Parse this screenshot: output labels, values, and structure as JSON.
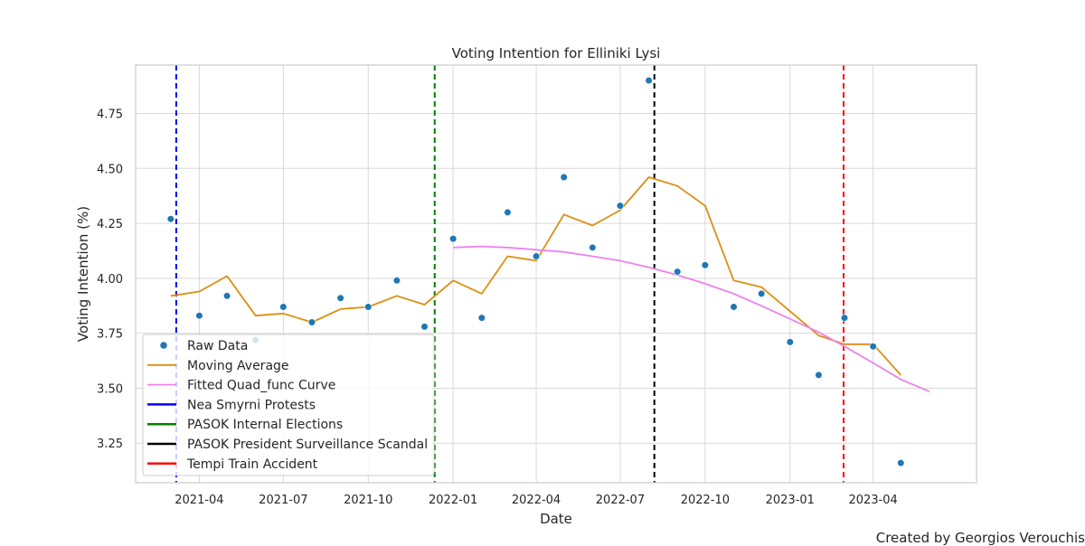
{
  "credit": "Created by Georgios Verouchis",
  "chart_data": {
    "type": "line",
    "title": "Voting Intention for Elliniki Lysi",
    "xlabel": "Date",
    "ylabel": "Voting Intention (%)",
    "x_ticks": [
      "2021-04",
      "2021-07",
      "2021-10",
      "2022-01",
      "2022-04",
      "2022-07",
      "2022-10",
      "2023-01",
      "2023-04"
    ],
    "y_ticks": [
      "3.25",
      "3.50",
      "3.75",
      "4.00",
      "4.25",
      "4.50",
      "4.75"
    ],
    "xlim": [
      "2021-01-22",
      "2023-07-22"
    ],
    "ylim": [
      3.07,
      4.97
    ],
    "grid": true,
    "legend_position": "lower-left",
    "series": [
      {
        "name": "Raw Data",
        "kind": "scatter",
        "color": "#1f77b4",
        "points": [
          [
            "2021-03-01",
            4.27
          ],
          [
            "2021-04-01",
            3.83
          ],
          [
            "2021-05-01",
            3.92
          ],
          [
            "2021-06-01",
            3.72
          ],
          [
            "2021-07-01",
            3.87
          ],
          [
            "2021-08-01",
            3.8
          ],
          [
            "2021-09-01",
            3.91
          ],
          [
            "2021-10-01",
            3.87
          ],
          [
            "2021-11-01",
            3.99
          ],
          [
            "2021-12-01",
            3.78
          ],
          [
            "2022-01-01",
            4.18
          ],
          [
            "2022-02-01",
            3.82
          ],
          [
            "2022-03-01",
            4.3
          ],
          [
            "2022-04-01",
            4.1
          ],
          [
            "2022-05-01",
            4.46
          ],
          [
            "2022-06-01",
            4.14
          ],
          [
            "2022-07-01",
            4.33
          ],
          [
            "2022-08-01",
            4.9
          ],
          [
            "2022-09-01",
            4.03
          ],
          [
            "2022-10-01",
            4.06
          ],
          [
            "2022-11-01",
            3.87
          ],
          [
            "2022-12-01",
            3.93
          ],
          [
            "2023-01-01",
            3.71
          ],
          [
            "2023-02-01",
            3.56
          ],
          [
            "2023-03-01",
            3.82
          ],
          [
            "2023-04-01",
            3.69
          ],
          [
            "2023-05-01",
            3.16
          ]
        ]
      },
      {
        "name": "Moving Average",
        "kind": "line",
        "color": "#dd8e12",
        "points": [
          [
            "2021-03-01",
            3.92
          ],
          [
            "2021-04-01",
            3.94
          ],
          [
            "2021-05-01",
            4.01
          ],
          [
            "2021-06-01",
            3.83
          ],
          [
            "2021-07-01",
            3.84
          ],
          [
            "2021-08-01",
            3.8
          ],
          [
            "2021-09-01",
            3.86
          ],
          [
            "2021-10-01",
            3.87
          ],
          [
            "2021-11-01",
            3.92
          ],
          [
            "2021-12-01",
            3.88
          ],
          [
            "2022-01-01",
            3.99
          ],
          [
            "2022-02-01",
            3.93
          ],
          [
            "2022-03-01",
            4.1
          ],
          [
            "2022-04-01",
            4.08
          ],
          [
            "2022-05-01",
            4.29
          ],
          [
            "2022-06-01",
            4.24
          ],
          [
            "2022-07-01",
            4.31
          ],
          [
            "2022-08-01",
            4.46
          ],
          [
            "2022-09-01",
            4.42
          ],
          [
            "2022-10-01",
            4.33
          ],
          [
            "2022-11-01",
            3.99
          ],
          [
            "2022-12-01",
            3.96
          ],
          [
            "2023-01-01",
            3.85
          ],
          [
            "2023-02-01",
            3.74
          ],
          [
            "2023-03-01",
            3.7
          ],
          [
            "2023-04-01",
            3.7
          ],
          [
            "2023-05-01",
            3.56
          ]
        ]
      },
      {
        "name": "Fitted Quad_func Curve",
        "kind": "line",
        "color": "#ee82ee",
        "points": [
          [
            "2022-01-01",
            4.14
          ],
          [
            "2022-02-01",
            4.145
          ],
          [
            "2022-03-01",
            4.14
          ],
          [
            "2022-04-01",
            4.13
          ],
          [
            "2022-05-01",
            4.12
          ],
          [
            "2022-06-01",
            4.1
          ],
          [
            "2022-07-01",
            4.08
          ],
          [
            "2022-08-01",
            4.05
          ],
          [
            "2022-09-01",
            4.015
          ],
          [
            "2022-10-01",
            3.975
          ],
          [
            "2022-11-01",
            3.93
          ],
          [
            "2022-12-01",
            3.875
          ],
          [
            "2023-01-01",
            3.815
          ],
          [
            "2023-02-01",
            3.755
          ],
          [
            "2023-03-01",
            3.69
          ],
          [
            "2023-04-01",
            3.615
          ],
          [
            "2023-05-01",
            3.54
          ],
          [
            "2023-06-01",
            3.485
          ]
        ]
      }
    ],
    "events": [
      {
        "name": "Nea Smyrni Protests",
        "date": "2021-03-07",
        "color": "#0000ff"
      },
      {
        "name": "PASOK Internal Elections",
        "date": "2021-12-12",
        "color": "#008000"
      },
      {
        "name": "PASOK President Surveillance Scandal",
        "date": "2022-08-07",
        "color": "#000000"
      },
      {
        "name": "Tempi Train Accident",
        "date": "2023-02-28",
        "color": "#ff0000"
      }
    ]
  }
}
